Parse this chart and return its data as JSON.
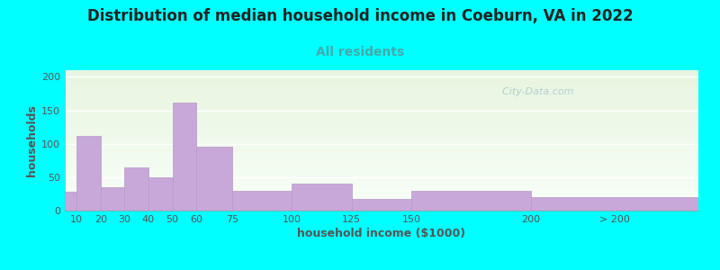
{
  "title": "Distribution of median household income in Coeburn, VA in 2022",
  "subtitle": "All residents",
  "xlabel": "household income ($1000)",
  "ylabel": "households",
  "background_color": "#00FFFF",
  "plot_bg_gradient_top": "#e8f5e0",
  "plot_bg_gradient_bottom": "#f8fff8",
  "bar_color": "#c8a8d8",
  "bar_edgecolor": "#b898c8",
  "categories": [
    "10",
    "20",
    "30",
    "40",
    "50",
    "60",
    "75",
    "100",
    "125",
    "150",
    "200",
    "> 200"
  ],
  "values": [
    28,
    112,
    35,
    65,
    50,
    162,
    95,
    30,
    40,
    17,
    29,
    20
  ],
  "bar_lefts": [
    5,
    10,
    20,
    30,
    40,
    50,
    60,
    75,
    100,
    125,
    150,
    200
  ],
  "bar_rights": [
    10,
    20,
    30,
    40,
    50,
    60,
    75,
    100,
    125,
    150,
    200,
    270
  ],
  "xtick_positions": [
    10,
    20,
    30,
    40,
    50,
    60,
    75,
    100,
    125,
    150,
    200,
    235
  ],
  "xlim": [
    5,
    270
  ],
  "ylim": [
    0,
    210
  ],
  "yticks": [
    0,
    50,
    100,
    150,
    200
  ],
  "title_fontsize": 12,
  "subtitle_fontsize": 10,
  "axis_label_fontsize": 9,
  "tick_fontsize": 8,
  "watermark_text": "  City-Data.com",
  "watermark_color": "#aac8cc",
  "title_color": "#222222",
  "subtitle_color": "#44aaaa",
  "axis_label_color": "#555555",
  "tick_color": "#555555"
}
